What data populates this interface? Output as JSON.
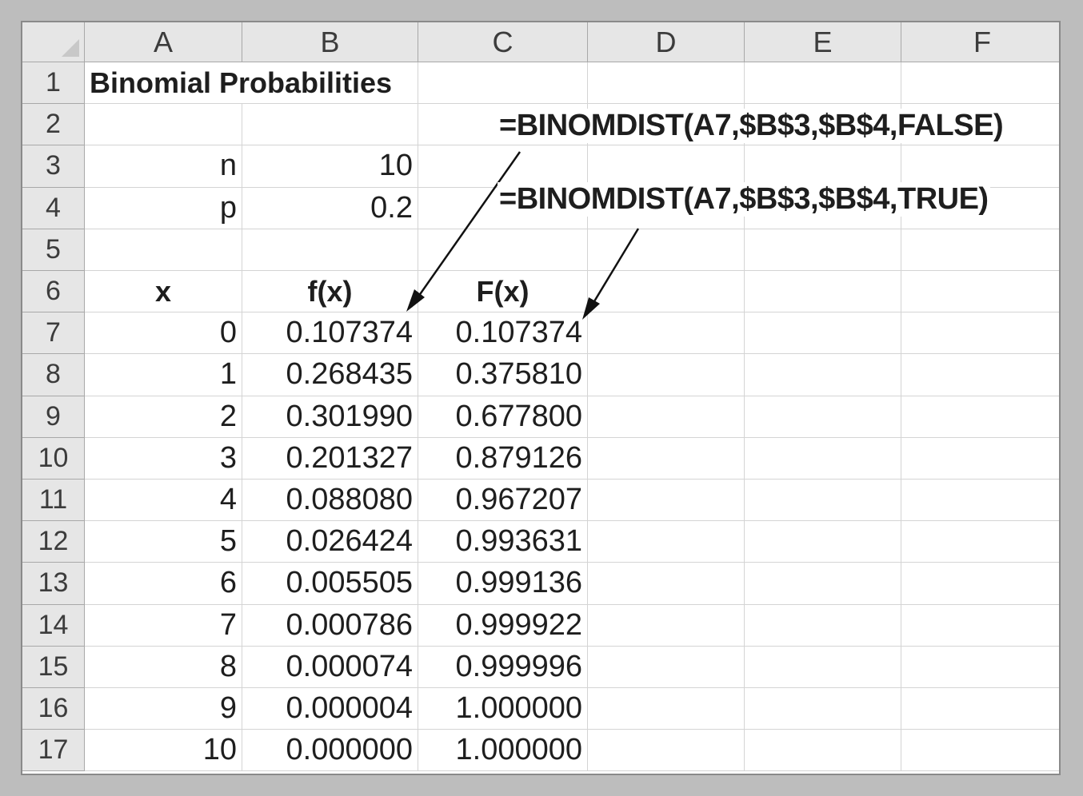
{
  "columns": [
    "A",
    "B",
    "C",
    "D",
    "E",
    "F"
  ],
  "rows": [
    "1",
    "2",
    "3",
    "4",
    "5",
    "6",
    "7",
    "8",
    "9",
    "10",
    "11",
    "12",
    "13",
    "14",
    "15",
    "16",
    "17"
  ],
  "title": "Binomial Probabilities",
  "params": {
    "n_label": "n",
    "n_value": "10",
    "p_label": "p",
    "p_value": "0.2"
  },
  "table": {
    "headers": [
      "x",
      "f(x)",
      "F(x)"
    ],
    "rows": [
      [
        "0",
        "0.107374",
        "0.107374"
      ],
      [
        "1",
        "0.268435",
        "0.375810"
      ],
      [
        "2",
        "0.301990",
        "0.677800"
      ],
      [
        "3",
        "0.201327",
        "0.879126"
      ],
      [
        "4",
        "0.088080",
        "0.967207"
      ],
      [
        "5",
        "0.026424",
        "0.993631"
      ],
      [
        "6",
        "0.005505",
        "0.999136"
      ],
      [
        "7",
        "0.000786",
        "0.999922"
      ],
      [
        "8",
        "0.000074",
        "0.999996"
      ],
      [
        "9",
        "0.000004",
        "1.000000"
      ],
      [
        "10",
        "0.000000",
        "1.000000"
      ]
    ]
  },
  "annotations": {
    "pdf_formula": "=BINOMDIST(A7,$B$3,$B$4,FALSE)",
    "cdf_formula": "=BINOMDIST(A7,$B$3,$B$4,TRUE)"
  },
  "colors": {
    "header_bg": "#e6e6e6",
    "gridline": "#d4d4d4",
    "frame_bg": "#bdbdbd"
  }
}
